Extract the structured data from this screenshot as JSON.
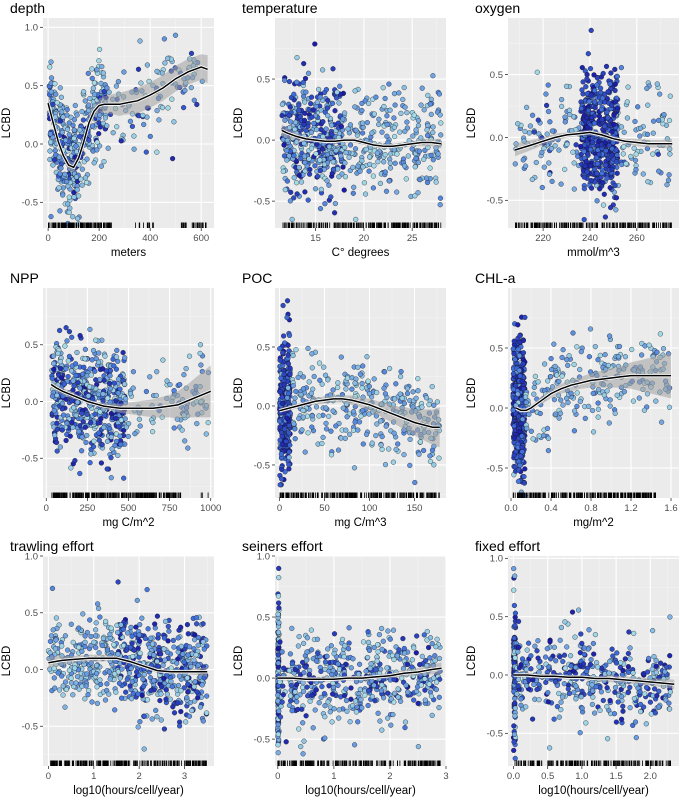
{
  "figure": {
    "colors": {
      "panel_bg": "#ebebeb",
      "pt_light": "#a6dde8",
      "pt_mid": "#3f6fdc",
      "pt_dark": "#1a1aa6",
      "pt_stroke": "#111111",
      "smooth": "#000000",
      "ribbon": "#a0a0a0",
      "rug": "#000000"
    }
  },
  "chart_data": [
    {
      "id": "depth",
      "type": "scatter",
      "title": "depth",
      "xlabel": "meters",
      "ylabel": "LCBD",
      "xlim": [
        -20,
        650
      ],
      "ylim": [
        -0.72,
        1.08
      ],
      "xticks": [
        0,
        200,
        400,
        600
      ],
      "xticklabels": [
        "0",
        "200",
        "400",
        "600"
      ],
      "yticks": [
        -0.5,
        0.0,
        0.5,
        1.0
      ],
      "yticklabels": [
        "-0.5",
        "0.0",
        "0.5",
        "1.0"
      ],
      "smooth": {
        "x": [
          0,
          20,
          40,
          60,
          80,
          100,
          120,
          140,
          160,
          180,
          200,
          220,
          240,
          260,
          280,
          300,
          350,
          400,
          450,
          500,
          550,
          600,
          625
        ],
        "y": [
          0.35,
          0.18,
          0.02,
          -0.1,
          -0.18,
          -0.2,
          -0.12,
          0.02,
          0.18,
          0.28,
          0.33,
          0.34,
          0.34,
          0.34,
          0.34,
          0.35,
          0.37,
          0.42,
          0.48,
          0.56,
          0.62,
          0.66,
          0.64
        ],
        "se": [
          0.06,
          0.05,
          0.04,
          0.04,
          0.04,
          0.04,
          0.04,
          0.04,
          0.05,
          0.05,
          0.06,
          0.07,
          0.08,
          0.09,
          0.1,
          0.1,
          0.11,
          0.11,
          0.11,
          0.11,
          0.11,
          0.11,
          0.12
        ]
      },
      "pts": {
        "n": 520,
        "segments": [
          {
            "x": [
              5,
              110
            ],
            "w": 0.45,
            "mid": [
              0.2,
              1.55,
              -0.25,
              0.16,
              0.25
            ]
          },
          {
            "x": [
              100,
              230
            ],
            "w": 0.35,
            "mid": [
              0.2,
              1.55,
              -0.2,
              0.16,
              0.25
            ]
          },
          {
            "x": [
              230,
              625
            ],
            "w": 0.2,
            "mid": [
              0.2,
              1.55,
              0.5,
              0.2,
              0.18
            ]
          }
        ]
      },
      "rug": [
        [
          0,
          250,
          140
        ],
        [
          340,
          420,
          10
        ],
        [
          520,
          620,
          25
        ]
      ]
    },
    {
      "id": "temperature",
      "type": "scatter",
      "title": "temperature",
      "xlabel": "C° degrees",
      "ylabel": "LCBD",
      "xlim": [
        10.8,
        28.5
      ],
      "ylim": [
        -0.72,
        1.0
      ],
      "xticks": [
        15,
        20,
        25
      ],
      "xticklabels": [
        "15",
        "20",
        "25"
      ],
      "yticks": [
        -0.5,
        0.0,
        0.5
      ],
      "yticklabels": [
        "-0.5",
        "0.0",
        "0.5"
      ],
      "smooth": {
        "x": [
          11.5,
          12,
          13,
          14,
          15,
          16,
          17,
          18,
          19,
          20,
          21,
          22,
          23,
          24,
          25,
          26,
          27,
          28
        ],
        "y": [
          0.08,
          0.06,
          0.03,
          0.01,
          0.0,
          -0.01,
          -0.01,
          0.0,
          0.0,
          -0.02,
          -0.04,
          -0.05,
          -0.05,
          -0.04,
          -0.03,
          -0.02,
          -0.02,
          -0.03
        ],
        "se": [
          0.05,
          0.04,
          0.03,
          0.02,
          0.02,
          0.02,
          0.02,
          0.02,
          0.02,
          0.02,
          0.02,
          0.02,
          0.02,
          0.02,
          0.02,
          0.03,
          0.03,
          0.04
        ]
      },
      "pts": {
        "n": 650,
        "segments": [
          {
            "x": [
              11.5,
              18
            ],
            "w": 0.6,
            "mid": [
              0.5,
              0.22,
              0,
              0.25,
              0.23
            ]
          },
          {
            "x": [
              18,
              28
            ],
            "w": 0.4,
            "mid": [
              0.0,
              0.2,
              -0.02,
              0.16,
              0.22
            ]
          }
        ]
      },
      "rug": [
        [
          11.5,
          28,
          220
        ]
      ]
    },
    {
      "id": "oxygen",
      "type": "scatter",
      "title": "oxygen",
      "xlabel": "mmol/m^3",
      "ylabel": "LCBD",
      "xlim": [
        205,
        278
      ],
      "ylim": [
        -0.72,
        0.95
      ],
      "xticks": [
        220,
        240,
        260
      ],
      "xticklabels": [
        "220",
        "240",
        "260"
      ],
      "yticks": [
        -0.5,
        0.0,
        0.5
      ],
      "yticklabels": [
        "-0.5",
        "0.0",
        "0.5"
      ],
      "smooth": {
        "x": [
          208,
          215,
          220,
          225,
          230,
          235,
          240,
          245,
          250,
          255,
          260,
          265,
          270,
          275
        ],
        "y": [
          -0.1,
          -0.06,
          -0.03,
          0.0,
          0.02,
          0.03,
          0.04,
          0.02,
          -0.01,
          -0.03,
          -0.04,
          -0.05,
          -0.05,
          -0.05
        ],
        "se": [
          0.05,
          0.04,
          0.03,
          0.03,
          0.02,
          0.02,
          0.02,
          0.02,
          0.02,
          0.02,
          0.03,
          0.03,
          0.03,
          0.04
        ]
      },
      "pts": {
        "n": 650,
        "segments": [
          {
            "x": [
              208,
              275
            ],
            "w": 0.35,
            "mid": [
              0.05,
              0.1,
              0,
              0.16,
              0.22
            ]
          },
          {
            "x": [
              236,
              252
            ],
            "w": 0.65,
            "mid": [
              1.0,
              0.08,
              0,
              0.25,
              0.25
            ]
          }
        ]
      },
      "rug": [
        [
          208,
          275,
          200
        ]
      ]
    },
    {
      "id": "npp",
      "type": "scatter",
      "title": "NPP",
      "xlabel": "mg C/m^2",
      "ylabel": "LCBD",
      "xlim": [
        -20,
        1020
      ],
      "ylim": [
        -0.85,
        1.0
      ],
      "xticks": [
        0,
        250,
        500,
        750,
        1000
      ],
      "xticklabels": [
        "0",
        "250",
        "500",
        "750",
        "1000"
      ],
      "yticks": [
        -0.5,
        0.0,
        0.5
      ],
      "yticklabels": [
        "-0.5",
        "0.0",
        "0.5"
      ],
      "smooth": {
        "x": [
          30,
          60,
          100,
          150,
          200,
          250,
          300,
          350,
          400,
          450,
          500,
          550,
          600,
          650,
          700,
          750,
          800,
          850,
          900,
          950,
          1000
        ],
        "y": [
          0.15,
          0.12,
          0.09,
          0.06,
          0.03,
          0.0,
          -0.02,
          -0.04,
          -0.05,
          -0.06,
          -0.06,
          -0.06,
          -0.06,
          -0.06,
          -0.05,
          -0.04,
          -0.03,
          0.0,
          0.03,
          0.06,
          0.09
        ],
        "se": [
          0.04,
          0.03,
          0.03,
          0.03,
          0.02,
          0.02,
          0.02,
          0.03,
          0.03,
          0.04,
          0.05,
          0.06,
          0.07,
          0.08,
          0.09,
          0.1,
          0.12,
          0.14,
          0.17,
          0.2,
          0.23
        ]
      },
      "pts": {
        "n": 620,
        "segments": [
          {
            "x": [
              30,
              480
            ],
            "w": 0.85,
            "mid": [
              0.45,
              1.0,
              0,
              0.25,
              0.23
            ]
          },
          {
            "x": [
              480,
              1000
            ],
            "w": 0.15,
            "mid": [
              0.0,
              0.2,
              0,
              0.12,
              0.2
            ]
          }
        ]
      },
      "rug": [
        [
          30,
          820,
          260
        ],
        [
          940,
          990,
          3
        ]
      ]
    },
    {
      "id": "poc",
      "type": "scatter",
      "title": "POC",
      "xlabel": "mg C/m^3",
      "ylabel": "LCBD",
      "xlim": [
        -5,
        185
      ],
      "ylim": [
        -0.78,
        1.0
      ],
      "xticks": [
        0,
        50,
        100,
        150
      ],
      "xticklabels": [
        "0",
        "50",
        "100",
        "150"
      ],
      "yticks": [
        -0.5,
        0.0,
        0.5
      ],
      "yticklabels": [
        "-0.5",
        "0.0",
        "0.5"
      ],
      "smooth": {
        "x": [
          0,
          10,
          20,
          30,
          40,
          50,
          60,
          70,
          80,
          90,
          100,
          110,
          120,
          130,
          140,
          150,
          160,
          170,
          178
        ],
        "y": [
          -0.04,
          -0.02,
          0.0,
          0.02,
          0.04,
          0.05,
          0.06,
          0.06,
          0.05,
          0.03,
          0.01,
          -0.02,
          -0.05,
          -0.08,
          -0.11,
          -0.14,
          -0.16,
          -0.18,
          -0.18
        ],
        "se": [
          0.02,
          0.02,
          0.02,
          0.02,
          0.03,
          0.03,
          0.03,
          0.03,
          0.04,
          0.04,
          0.05,
          0.06,
          0.07,
          0.08,
          0.1,
          0.11,
          0.13,
          0.15,
          0.17
        ]
      },
      "pts": {
        "n": 650,
        "segments": [
          {
            "x": [
              0,
              12
            ],
            "w": 0.5,
            "mid": [
              0.9,
              0.4,
              0,
              0.28,
              0.25
            ]
          },
          {
            "x": [
              12,
              178
            ],
            "w": 0.5,
            "mid": [
              0.0,
              0.5,
              0,
              0.18,
              0.2
            ]
          }
        ]
      },
      "rug": [
        [
          0,
          178,
          230
        ]
      ]
    },
    {
      "id": "chla",
      "type": "scatter",
      "title": "CHL-a",
      "xlabel": "mg/m^2",
      "ylabel": "LCBD",
      "xlim": [
        -0.03,
        1.68
      ],
      "ylim": [
        -0.75,
        1.0
      ],
      "xticks": [
        0.0,
        0.4,
        0.8,
        1.2,
        1.6
      ],
      "xticklabels": [
        "0.0",
        "0.4",
        "0.8",
        "1.2",
        "1.6"
      ],
      "yticks": [
        -0.5,
        0.0,
        0.5
      ],
      "yticklabels": [
        "-0.5",
        "0.0",
        "0.5"
      ],
      "smooth": {
        "x": [
          0.05,
          0.1,
          0.15,
          0.2,
          0.3,
          0.4,
          0.5,
          0.6,
          0.7,
          0.8,
          0.9,
          1.0,
          1.1,
          1.2,
          1.3,
          1.4,
          1.5,
          1.6
        ],
        "y": [
          0.0,
          -0.02,
          -0.02,
          0.0,
          0.06,
          0.12,
          0.16,
          0.19,
          0.21,
          0.23,
          0.24,
          0.25,
          0.26,
          0.27,
          0.27,
          0.27,
          0.27,
          0.27
        ],
        "se": [
          0.02,
          0.02,
          0.02,
          0.02,
          0.03,
          0.04,
          0.04,
          0.05,
          0.05,
          0.06,
          0.07,
          0.08,
          0.09,
          0.11,
          0.13,
          0.15,
          0.17,
          0.19
        ]
      },
      "pts": {
        "n": 650,
        "segments": [
          {
            "x": [
              0.02,
              0.14
            ],
            "w": 0.65,
            "mid": [
              0.9,
              0.45,
              0,
              0.28,
              0.25
            ]
          },
          {
            "x": [
              0.14,
              1.6
            ],
            "w": 0.35,
            "mid": [
              0.0,
              0.3,
              0.2,
              0.16,
              0.18
            ]
          }
        ]
      },
      "rug": [
        [
          0.02,
          1.45,
          230
        ]
      ]
    },
    {
      "id": "trawling",
      "type": "scatter",
      "title": "trawling effort",
      "xlabel": "log10(hours/cell/year)",
      "ylabel": "LCBD",
      "xlim": [
        -0.12,
        3.65
      ],
      "ylim": [
        -0.85,
        1.0
      ],
      "xticks": [
        0,
        1,
        2,
        3
      ],
      "xticklabels": [
        "0",
        "1",
        "2",
        "3"
      ],
      "yticks": [
        -0.5,
        0.0,
        0.5,
        1.0
      ],
      "yticklabels": [
        "-0.5",
        "0.0",
        "0.5",
        "1.0"
      ],
      "smooth": {
        "x": [
          0,
          0.3,
          0.6,
          0.9,
          1.2,
          1.5,
          1.8,
          2.1,
          2.4,
          2.7,
          3.0,
          3.3,
          3.5
        ],
        "y": [
          0.06,
          0.08,
          0.09,
          0.1,
          0.1,
          0.1,
          0.07,
          0.03,
          -0.01,
          -0.02,
          -0.02,
          -0.02,
          -0.02
        ],
        "se": [
          0.05,
          0.04,
          0.03,
          0.03,
          0.03,
          0.02,
          0.02,
          0.02,
          0.02,
          0.02,
          0.02,
          0.03,
          0.04
        ]
      },
      "pts": {
        "n": 650,
        "segments": [
          {
            "x": [
              0,
              1.5
            ],
            "w": 0.35,
            "mid": [
              0.0,
              0.35,
              0.08,
              0.16,
              0.2
            ]
          },
          {
            "x": [
              1.5,
              3.5
            ],
            "w": 0.65,
            "mid": [
              0.45,
              0.6,
              0,
              0.22,
              0.2
            ]
          }
        ]
      },
      "rug": [
        [
          0,
          3.5,
          230
        ]
      ]
    },
    {
      "id": "seiners",
      "type": "scatter",
      "title": "seiners effort",
      "xlabel": "log10(hours/cell/year)",
      "ylabel": "LCBD",
      "xlim": [
        -0.05,
        3.0
      ],
      "ylim": [
        -0.72,
        1.0
      ],
      "xticks": [
        0,
        1,
        2,
        3
      ],
      "xticklabels": [
        "0",
        "1",
        "2",
        "3"
      ],
      "yticks": [
        -0.5,
        0.0,
        0.5,
        1.0
      ],
      "yticklabels": [
        "-0.5",
        "0.0",
        "0.5",
        "1.0"
      ],
      "smooth": {
        "x": [
          0,
          0.25,
          0.5,
          0.75,
          1,
          1.25,
          1.5,
          1.75,
          2,
          2.25,
          2.5,
          2.75,
          2.92
        ],
        "y": [
          0.0,
          0.0,
          -0.01,
          -0.01,
          -0.01,
          0.0,
          0.0,
          0.01,
          0.02,
          0.04,
          0.05,
          0.07,
          0.08
        ],
        "se": [
          0.02,
          0.02,
          0.02,
          0.02,
          0.02,
          0.02,
          0.02,
          0.02,
          0.02,
          0.03,
          0.03,
          0.04,
          0.05
        ]
      },
      "pts": {
        "n": 600,
        "segments": [
          {
            "x": [
              0,
              0.02
            ],
            "w": 0.2,
            "mid": [
              0.4,
              0.3,
              0,
              0.3,
              0.3
            ]
          },
          {
            "x": [
              0.02,
              2.9
            ],
            "w": 0.8,
            "mid": [
              0.3,
              0.7,
              0,
              0.15,
              0.2
            ]
          }
        ]
      },
      "rug": [
        [
          0,
          2.9,
          210
        ]
      ]
    },
    {
      "id": "fixed",
      "type": "scatter",
      "title": "fixed effort",
      "xlabel": "log10(hours/cell/year)",
      "ylabel": "LCBD",
      "xlim": [
        -0.08,
        2.42
      ],
      "ylim": [
        -0.78,
        1.02
      ],
      "xticks": [
        0.0,
        0.5,
        1.0,
        1.5,
        2.0
      ],
      "xticklabels": [
        "0.0",
        "0.5",
        "1.0",
        "1.5",
        "2.0"
      ],
      "yticks": [
        -0.5,
        0.0,
        0.5,
        1.0
      ],
      "yticklabels": [
        "-0.5",
        "0.0",
        "0.5",
        "1.0"
      ],
      "smooth": {
        "x": [
          0,
          0.2,
          0.4,
          0.6,
          0.8,
          1.0,
          1.2,
          1.4,
          1.6,
          1.8,
          2.0,
          2.2,
          2.35
        ],
        "y": [
          0.0,
          0.0,
          -0.01,
          -0.01,
          -0.02,
          -0.02,
          -0.03,
          -0.03,
          -0.04,
          -0.05,
          -0.06,
          -0.07,
          -0.08
        ],
        "se": [
          0.02,
          0.02,
          0.02,
          0.02,
          0.02,
          0.02,
          0.02,
          0.03,
          0.03,
          0.03,
          0.03,
          0.04,
          0.04
        ]
      },
      "pts": {
        "n": 520,
        "segments": [
          {
            "x": [
              0,
              0.03
            ],
            "w": 0.22,
            "mid": [
              0.6,
              0.25,
              0,
              0.3,
              0.3
            ]
          },
          {
            "x": [
              0.03,
              2.3
            ],
            "w": 0.78,
            "mid": [
              0.5,
              0.7,
              0,
              0.16,
              0.2
            ]
          }
        ]
      },
      "rug": [
        [
          0,
          2.3,
          190
        ]
      ]
    }
  ]
}
